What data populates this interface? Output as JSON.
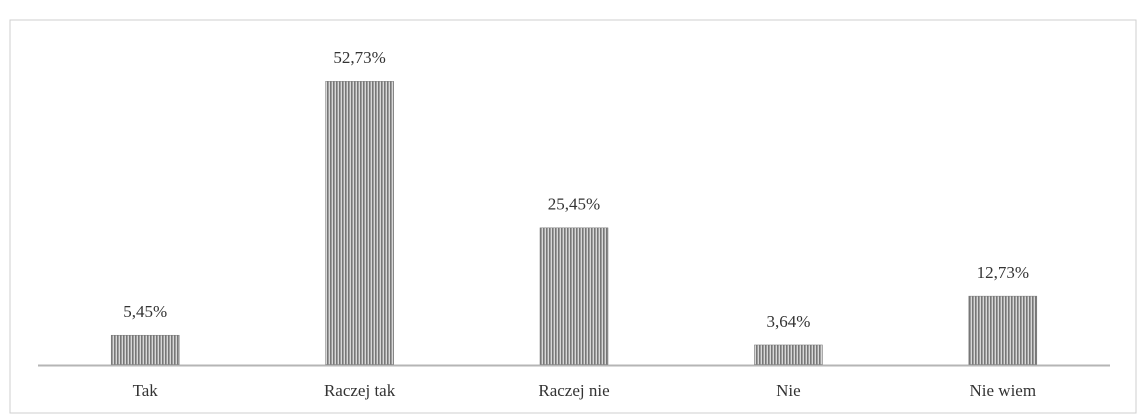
{
  "chart_data": {
    "type": "bar",
    "categories": [
      "Tak",
      "Raczej tak",
      "Raczej nie",
      "Nie",
      "Nie wiem"
    ],
    "values": [
      5.45,
      52.73,
      25.45,
      3.64,
      12.73
    ],
    "value_labels": [
      "5,45%",
      "52,73%",
      "25,45%",
      "3,64%",
      "12,73%"
    ],
    "color": "#777777"
  }
}
